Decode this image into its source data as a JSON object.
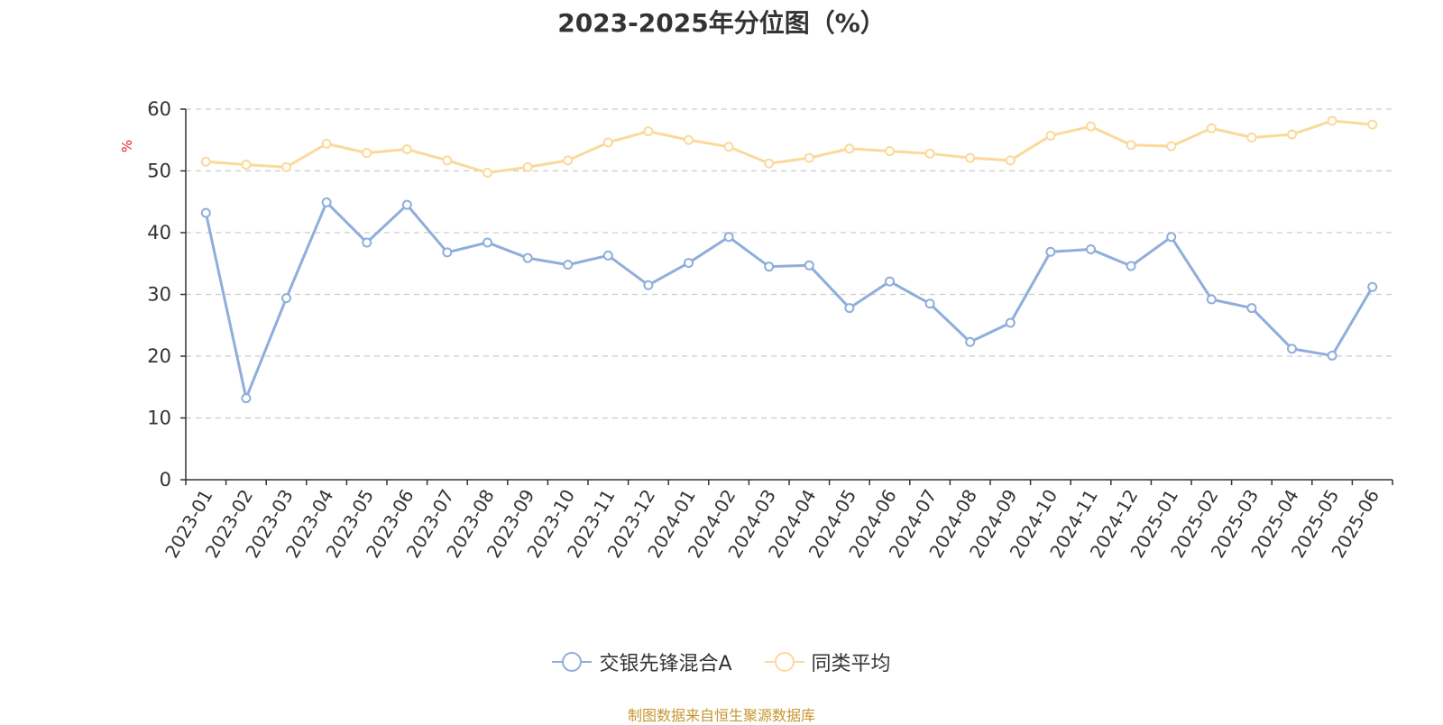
{
  "chart_data": {
    "type": "line",
    "title": "2023-2025年分位图（%）",
    "ylabel": "%",
    "ylim": [
      0,
      60
    ],
    "yticks": [
      0,
      10,
      20,
      30,
      40,
      50,
      60
    ],
    "grid": true,
    "legend_position": "bottom",
    "categories": [
      "2023-01",
      "2023-02",
      "2023-03",
      "2023-04",
      "2023-05",
      "2023-06",
      "2023-07",
      "2023-08",
      "2023-09",
      "2023-10",
      "2023-11",
      "2023-12",
      "2024-01",
      "2024-02",
      "2024-03",
      "2024-04",
      "2024-05",
      "2024-06",
      "2024-07",
      "2024-08",
      "2024-09",
      "2024-10",
      "2024-11",
      "2024-12",
      "2025-01",
      "2025-02",
      "2025-03",
      "2025-04",
      "2025-05",
      "2025-06"
    ],
    "series": [
      {
        "name": "交银先锋混合A",
        "color": "#8eaedb",
        "values": [
          43.2,
          13.2,
          29.4,
          44.9,
          38.4,
          44.5,
          36.8,
          38.4,
          35.9,
          34.8,
          36.3,
          31.5,
          35.1,
          39.3,
          34.5,
          34.7,
          27.8,
          32.1,
          28.5,
          22.3,
          25.4,
          36.9,
          37.3,
          34.6,
          39.3,
          29.2,
          27.8,
          21.2,
          20.1,
          31.2
        ]
      },
      {
        "name": "同类平均",
        "color": "#fbd99b",
        "values": [
          51.5,
          51.0,
          50.6,
          54.4,
          52.9,
          53.5,
          51.7,
          49.7,
          50.6,
          51.7,
          54.6,
          56.4,
          55.0,
          53.9,
          51.2,
          52.1,
          53.6,
          53.2,
          52.8,
          52.1,
          51.7,
          55.7,
          57.2,
          54.2,
          54.0,
          56.9,
          55.4,
          55.9,
          58.1,
          57.5
        ]
      }
    ]
  },
  "footer": "制图数据来自恒生聚源数据库"
}
